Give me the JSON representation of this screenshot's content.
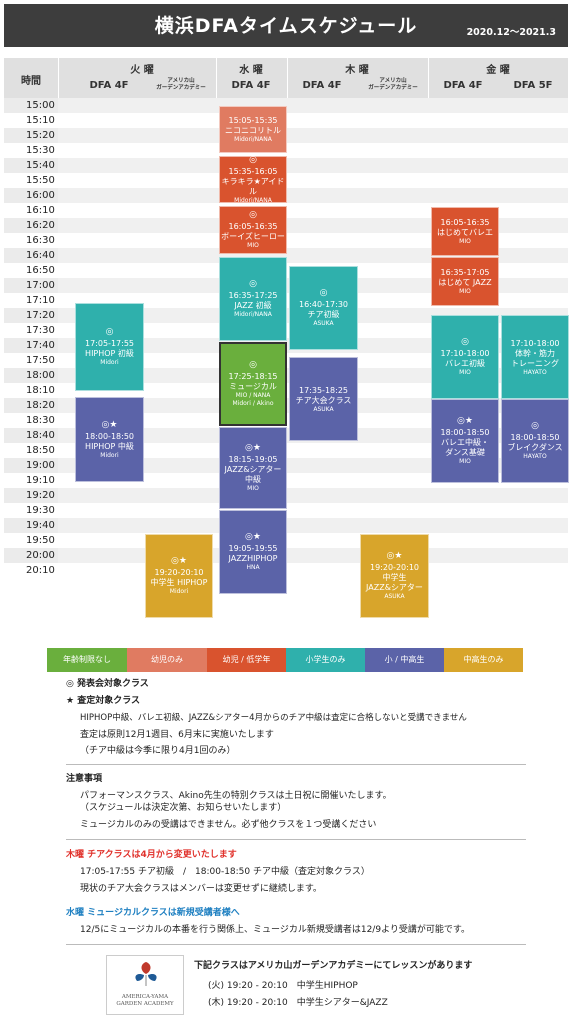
{
  "header": {
    "title": "横浜DFAタイムスケジュール",
    "period": "2020.12〜2021.3"
  },
  "columns": {
    "time_label": "時間",
    "days": {
      "tue": "火 曜",
      "wed": "水 曜",
      "thu": "木 曜",
      "fri": "金 曜"
    },
    "studios": {
      "dfa4f": "DFA 4F",
      "dfa5f": "DFA 5F",
      "garden": "アメリカ山\nガーデンアカデミー"
    }
  },
  "times": [
    "15:00",
    "15:10",
    "15:20",
    "15:30",
    "15:40",
    "15:50",
    "16:00",
    "16:10",
    "16:20",
    "16:30",
    "16:40",
    "16:50",
    "17:00",
    "17:10",
    "17:20",
    "17:30",
    "17:40",
    "17:50",
    "18:00",
    "18:10",
    "18:20",
    "18:30",
    "18:40",
    "18:50",
    "19:00",
    "19:10",
    "19:20",
    "19:30",
    "19:40",
    "19:50",
    "20:00",
    "20:10"
  ],
  "colors": {
    "none": "#6aaf3d",
    "infant": "#e07b61",
    "lowgrade": "#d9532e",
    "elementary": "#2fb0ac",
    "junior": "#5b63a8",
    "highschool": "#d8a52b"
  },
  "classes": [
    {
      "mark": "",
      "time": "15:05-15:35",
      "name": "ニコニコリトル",
      "instructor": "Midori/NANA"
    },
    {
      "mark": "◎",
      "time": "15:35-16:05",
      "name": "キラキラ★アイドル",
      "instructor": "Midori/NANA"
    },
    {
      "mark": "◎",
      "time": "16:05-16:35",
      "name": "ボーイズヒーロー",
      "instructor": "MIO"
    },
    {
      "mark": "◎",
      "time": "16:35-17:25",
      "name": "JAZZ 初級",
      "instructor": "Midori/NANA"
    },
    {
      "mark": "◎",
      "time": "17:25-18:15",
      "name": "ミュージカル",
      "instructor": "MIO / NANA\nMidori / Akino"
    },
    {
      "mark": "◎★",
      "time": "18:15-19:05",
      "name": "JAZZ&シアター\n中級",
      "instructor": "MIO"
    },
    {
      "mark": "◎★",
      "time": "19:05-19:55",
      "name": "JAZZHIPHOP",
      "instructor": "HNA"
    },
    {
      "mark": "◎",
      "time": "17:05-17:55",
      "name": "HIPHOP 初級",
      "instructor": "Midori"
    },
    {
      "mark": "◎★",
      "time": "18:00-18:50",
      "name": "HIPHOP 中級",
      "instructor": "Midori"
    },
    {
      "mark": "◎★",
      "time": "19:20-20:10",
      "name": "中学生 HIPHOP",
      "instructor": "Midori"
    },
    {
      "mark": "◎",
      "time": "16:40-17:30",
      "name": "チア初級",
      "instructor": "ASUKA"
    },
    {
      "mark": "",
      "time": "17:35-18:25",
      "name": "チア大会クラス",
      "instructor": "ASUKA"
    },
    {
      "mark": "◎★",
      "time": "19:20-20:10",
      "name": "中学生\nJAZZ&シアター",
      "instructor": "ASUKA"
    },
    {
      "mark": "",
      "time": "16:05-16:35",
      "name": "はじめてバレエ",
      "instructor": "MIO"
    },
    {
      "mark": "",
      "time": "16:35-17:05",
      "name": "はじめて JAZZ",
      "instructor": "MIO"
    },
    {
      "mark": "◎",
      "time": "17:10-18:00",
      "name": "バレエ初級",
      "instructor": "MIO"
    },
    {
      "mark": "◎★",
      "time": "18:00-18:50",
      "name": "バレエ中級・\nダンス基礎",
      "instructor": "MIO"
    },
    {
      "mark": "",
      "time": "17:10-18:00",
      "name": "体幹・筋力\nトレーニング",
      "instructor": "HAYATO"
    },
    {
      "mark": "◎",
      "time": "18:00-18:50",
      "name": "ブレイクダンス",
      "instructor": "HAYATO"
    }
  ],
  "legend": [
    "年齢制限なし",
    "幼児のみ",
    "幼児 / 低学年",
    "小学生のみ",
    "小 / 中高生",
    "中高生のみ"
  ],
  "notes": {
    "happyokai": "◎ 発表会対象クラス",
    "satei": "★ 査定対象クラス",
    "satei_l1": "HIPHOP中級、バレエ初級、JAZZ&シアター4月からのチア中級は査定に合格しないと受講できません",
    "satei_l2": "査定は原則12月1週目、6月末に実施いたします",
    "satei_l3": "（チア中級は今季に限り4月1回のみ）",
    "caution_title": "注意事項",
    "caution_l1": "パフォーマンスクラス、Akino先生の特別クラスは土日祝に開催いたします。",
    "caution_l2": "（スケジュールは決定次第、お知らせいたします）",
    "caution_l3": "ミュージカルのみの受講はできません。必ず他クラスを１つ受講ください",
    "thu_title": "木曜 チアクラスは4月から変更いたします",
    "thu_l1": "17:05-17:55 チア初級　/　18:00-18:50 チア中級（査定対象クラス）",
    "thu_l2": "現状のチア大会クラスはメンバーは変更せずに継続します。",
    "wed_title": "水曜 ミュージカルクラスは新規受講者様へ",
    "wed_l1": "12/5にミュージカルの本番を行う関係上、ミュージカル新規受講者は12/9より受講が可能です。",
    "garden_title": "下記クラスはアメリカ山ガーデンアカデミーにてレッスンがあります",
    "garden_l1": "(火) 19:20 - 20:10　中学生HIPHOP",
    "garden_l2": "(木) 19:20 - 20:10　中学生シアター&JAZZ",
    "logo_l1": "AMERICA-YAMA",
    "logo_l2": "GARDEN ACADEMY"
  }
}
